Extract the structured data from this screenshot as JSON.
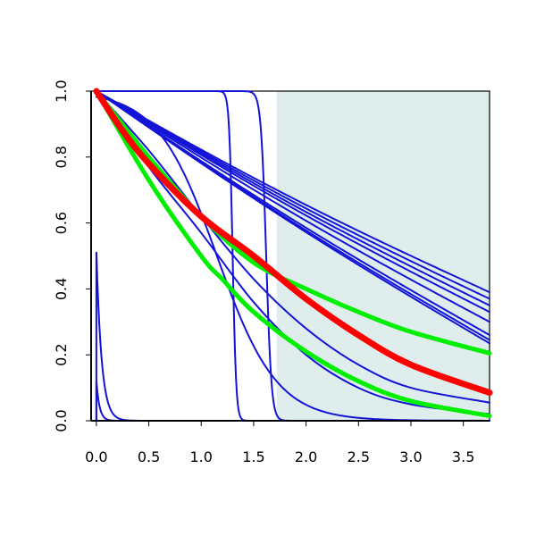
{
  "chart_data": {
    "type": "line",
    "title": "",
    "xlabel": "",
    "ylabel": "",
    "xlim": [
      -0.05,
      3.75
    ],
    "ylim": [
      0.0,
      1.0
    ],
    "x_ticks": [
      "0.0",
      "0.5",
      "1.0",
      "1.5",
      "2.0",
      "2.5",
      "3.0",
      "3.5"
    ],
    "y_ticks": [
      "0.0",
      "0.2",
      "0.4",
      "0.6",
      "0.8",
      "1.0"
    ],
    "grid": false,
    "legend": "none",
    "shaded_region": {
      "x_from": 1.72,
      "x_to": 3.75,
      "color": "#e0eded"
    },
    "colors": {
      "blue": "#1414d8",
      "green": "#00ee00",
      "red": "#ff0000",
      "frame": "#000000"
    },
    "series": [
      {
        "color": "blue",
        "kind": "linear_decay",
        "y_at_end": 0.39
      },
      {
        "color": "blue",
        "kind": "linear_decay",
        "y_at_end": 0.37
      },
      {
        "color": "blue",
        "kind": "linear_decay",
        "y_at_end": 0.35
      },
      {
        "color": "blue",
        "kind": "linear_decay",
        "y_at_end": 0.33
      },
      {
        "color": "blue",
        "kind": "linear_decay",
        "y_at_end": 0.3
      },
      {
        "color": "blue",
        "kind": "linear_decay",
        "y_at_end": 0.26
      },
      {
        "color": "blue",
        "kind": "linear_decay",
        "y_at_end": 0.245
      },
      {
        "color": "blue",
        "kind": "linear_decay",
        "y_at_end": 0.235
      },
      {
        "color": "blue",
        "kind": "step",
        "step_x": 1.3,
        "sharpness": 60
      },
      {
        "color": "blue",
        "kind": "step",
        "step_x": 1.62,
        "sharpness": 40
      },
      {
        "color": "blue",
        "kind": "sigmoid_drop",
        "step_x": 1.15,
        "sharpness": 3.5
      },
      {
        "color": "blue",
        "kind": "curve",
        "points": [
          [
            0.0,
            1.0
          ],
          [
            0.5,
            0.82
          ],
          [
            1.0,
            0.62
          ],
          [
            1.5,
            0.43
          ],
          [
            2.0,
            0.28
          ],
          [
            2.5,
            0.17
          ],
          [
            3.0,
            0.1
          ],
          [
            3.75,
            0.055
          ]
        ]
      },
      {
        "color": "blue",
        "kind": "curve",
        "points": [
          [
            0.0,
            1.0
          ],
          [
            0.5,
            0.77
          ],
          [
            1.0,
            0.57
          ],
          [
            1.5,
            0.36
          ],
          [
            2.0,
            0.2
          ],
          [
            2.5,
            0.1
          ],
          [
            3.0,
            0.05
          ],
          [
            3.75,
            0.02
          ]
        ]
      },
      {
        "color": "blue",
        "kind": "spike",
        "x": 0.0,
        "y_top": 0.51,
        "decay": 0.05
      },
      {
        "color": "blue",
        "kind": "spike",
        "x": 0.0,
        "y_top": 0.12,
        "decay": 0.03
      },
      {
        "color": "green",
        "kind": "curve",
        "points": [
          [
            0.0,
            1.0
          ],
          [
            0.5,
            0.8
          ],
          [
            1.0,
            0.62
          ],
          [
            1.5,
            0.48
          ],
          [
            2.0,
            0.4
          ],
          [
            2.5,
            0.33
          ],
          [
            3.0,
            0.27
          ],
          [
            3.75,
            0.205
          ]
        ]
      },
      {
        "color": "green",
        "kind": "curve",
        "points": [
          [
            0.0,
            1.0
          ],
          [
            0.5,
            0.73
          ],
          [
            1.0,
            0.5
          ],
          [
            1.2,
            0.43
          ],
          [
            1.5,
            0.33
          ],
          [
            2.0,
            0.21
          ],
          [
            2.5,
            0.12
          ],
          [
            3.0,
            0.06
          ],
          [
            3.75,
            0.015
          ]
        ]
      },
      {
        "color": "red",
        "kind": "curve",
        "points": [
          [
            0.0,
            1.0
          ],
          [
            0.25,
            0.88
          ],
          [
            0.5,
            0.78
          ],
          [
            1.0,
            0.62
          ],
          [
            1.5,
            0.5
          ],
          [
            2.0,
            0.37
          ],
          [
            2.5,
            0.26
          ],
          [
            3.0,
            0.17
          ],
          [
            3.75,
            0.085
          ]
        ]
      }
    ]
  }
}
